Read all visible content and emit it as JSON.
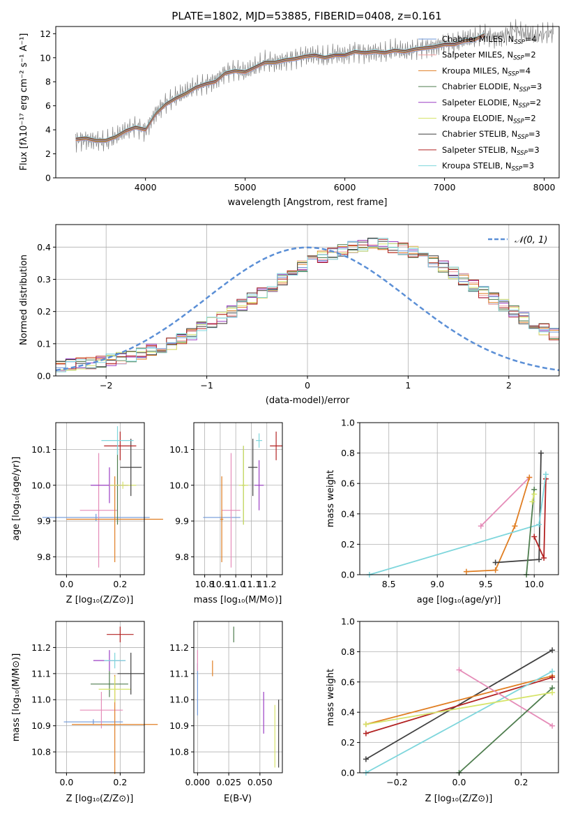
{
  "figure_title": "PLATE=1802, MJD=53885, FIBERID=0408, z=0.161",
  "colors": {
    "Chabrier MILES": "#6e97d8",
    "Salpeter MILES": "#f2a0a0",
    "Kroupa MILES": "#e07e22",
    "Chabrier ELODIE": "#4e7d4e",
    "Salpeter ELODIE": "#9b3fc4",
    "Kroupa ELODIE": "#d6e46a",
    "Chabrier STELIB": "#404040",
    "Salpeter STELIB": "#b22222",
    "Kroupa STELIB": "#7ed6dc",
    "data": "#808080",
    "gaussian": "#5b8fd6",
    "pink": "#e58cb8"
  },
  "chart_data": [
    {
      "type": "line",
      "title": "PLATE=1802, MJD=53885, FIBERID=0408, z=0.161",
      "xlabel": "wavelength [Angstrom, rest frame]",
      "ylabel": "Flux [fλ10⁻¹⁷ erg cm⁻² s⁻¹ A⁻¹]",
      "xlim": [
        3100,
        8150
      ],
      "ylim": [
        0,
        12.6
      ],
      "xticks": [
        4000,
        5000,
        6000,
        7000,
        8000
      ],
      "yticks": [
        0,
        2,
        4,
        6,
        8,
        10,
        12
      ],
      "legend_position": "upper-right",
      "x": [
        3300,
        3400,
        3500,
        3600,
        3700,
        3800,
        3900,
        4000,
        4100,
        4200,
        4300,
        4400,
        4500,
        4600,
        4700,
        4800,
        4900,
        5000,
        5100,
        5200,
        5300,
        5400,
        5500,
        5600,
        5700,
        5800,
        5900,
        6000,
        6100,
        6200,
        6300,
        6400,
        6500,
        6600,
        6700,
        6800,
        6900,
        7000,
        7100,
        7200,
        7300,
        7400,
        7500,
        7600,
        7700,
        7800,
        7900,
        8000,
        8100
      ],
      "data_flux": [
        3.1,
        3.2,
        3.1,
        3.0,
        3.4,
        3.9,
        4.3,
        3.9,
        5.4,
        6.2,
        6.7,
        7.1,
        7.6,
        7.8,
        8.1,
        8.8,
        9.0,
        8.8,
        9.2,
        9.7,
        9.6,
        9.8,
        10.0,
        10.2,
        10.2,
        10.0,
        10.3,
        10.2,
        10.6,
        10.4,
        10.5,
        10.4,
        10.7,
        10.5,
        10.7,
        10.9,
        10.9,
        11.2,
        11.1,
        11.5,
        11.6,
        12.0,
        11.6,
        11.8,
        12.4,
        12.0,
        11.8,
        12.0,
        12.1
      ],
      "model_flux": [
        3.2,
        3.3,
        3.1,
        3.1,
        3.4,
        3.9,
        4.2,
        4.0,
        5.3,
        6.1,
        6.6,
        7.0,
        7.5,
        7.8,
        8.0,
        8.7,
        8.9,
        8.8,
        9.2,
        9.6,
        9.6,
        9.8,
        9.9,
        10.1,
        10.2,
        10.0,
        10.2,
        10.2,
        10.5,
        10.4,
        10.5,
        10.4,
        10.6,
        10.5,
        10.7,
        10.8,
        10.9,
        11.1,
        11.1,
        11.4,
        11.5,
        11.9,
        11.6,
        11.8,
        12.3,
        12.0,
        11.8,
        12.0,
        12.0
      ],
      "series": [
        {
          "name": "Chabrier MILES, N_SSP=4",
          "label_main": "Chabrier MILES, N",
          "label_sub": "SSP",
          "label_tail": "=4"
        },
        {
          "name": "Salpeter MILES, N_SSP=2",
          "label_main": "Salpeter MILES, N",
          "label_sub": "SSP",
          "label_tail": "=2"
        },
        {
          "name": "Kroupa MILES, N_SSP=4",
          "label_main": "Kroupa MILES, N",
          "label_sub": "SSP",
          "label_tail": "=4"
        },
        {
          "name": "Chabrier ELODIE, N_SSP=3",
          "label_main": "Chabrier ELODIE, N",
          "label_sub": "SSP",
          "label_tail": "=3"
        },
        {
          "name": "Salpeter ELODIE, N_SSP=2",
          "label_main": "Salpeter ELODIE, N",
          "label_sub": "SSP",
          "label_tail": "=2"
        },
        {
          "name": "Kroupa ELODIE, N_SSP=2",
          "label_main": "Kroupa ELODIE, N",
          "label_sub": "SSP",
          "label_tail": "=2"
        },
        {
          "name": "Chabrier STELIB, N_SSP=3",
          "label_main": "Chabrier STELIB, N",
          "label_sub": "SSP",
          "label_tail": "=3"
        },
        {
          "name": "Salpeter STELIB, N_SSP=3",
          "label_main": "Salpeter STELIB, N",
          "label_sub": "SSP",
          "label_tail": "=3"
        },
        {
          "name": "Kroupa STELIB, N_SSP=3",
          "label_main": "Kroupa STELIB, N",
          "label_sub": "SSP",
          "label_tail": "=3"
        }
      ]
    },
    {
      "type": "bar",
      "xlabel": "(data-model)/error",
      "ylabel": "Normed distribution",
      "xlim": [
        -2.5,
        2.5
      ],
      "ylim": [
        0,
        0.47
      ],
      "xticks": [
        -2,
        -1,
        0,
        1,
        2
      ],
      "yticks": [
        0.0,
        0.1,
        0.2,
        0.3,
        0.4
      ],
      "grid": true,
      "legend_position": "upper-right",
      "legend": "𝒩(0, 1)",
      "bin_width": 0.1,
      "bin_start": -2.5,
      "hist_values": [
        0.03,
        0.035,
        0.038,
        0.04,
        0.045,
        0.05,
        0.055,
        0.06,
        0.07,
        0.08,
        0.09,
        0.1,
        0.115,
        0.13,
        0.15,
        0.165,
        0.18,
        0.2,
        0.22,
        0.24,
        0.26,
        0.28,
        0.3,
        0.32,
        0.34,
        0.355,
        0.37,
        0.38,
        0.39,
        0.4,
        0.405,
        0.41,
        0.41,
        0.4,
        0.395,
        0.385,
        0.37,
        0.355,
        0.34,
        0.32,
        0.3,
        0.28,
        0.26,
        0.24,
        0.22,
        0.2,
        0.18,
        0.16,
        0.145,
        0.13
      ]
    },
    {
      "type": "scatter",
      "xlabel": "Z [log₁₀(Z/Z⊙)]",
      "ylabel": "age  [log₁₀(age/yr)]",
      "xlim": [
        -0.04,
        0.29
      ],
      "ylim": [
        9.75,
        10.175
      ],
      "xticks": [
        0.0,
        0.2
      ],
      "yticks": [
        9.8,
        9.9,
        10.0,
        10.1
      ],
      "points": [
        {
          "x": 0.11,
          "y": 9.91,
          "xerr": 0.2,
          "yerr": 0.01
        },
        {
          "x": 0.12,
          "y": 9.93,
          "xerr": 0.07,
          "yerr": 0.16
        },
        {
          "x": 0.18,
          "y": 9.905,
          "xerr": 0.18,
          "yerr": 0.12
        },
        {
          "x": 0.19,
          "y": 10.0,
          "xerr": 0.03,
          "yerr": 0.11
        },
        {
          "x": 0.16,
          "y": 10.0,
          "xerr": 0.07,
          "yerr": 0.05
        },
        {
          "x": 0.21,
          "y": 10.0,
          "xerr": 0.05,
          "yerr": 0.01
        },
        {
          "x": 0.24,
          "y": 10.05,
          "xerr": 0.04,
          "yerr": 0.08
        },
        {
          "x": 0.2,
          "y": 10.11,
          "xerr": 0.06,
          "yerr": 0.04
        },
        {
          "x": 0.19,
          "y": 10.125,
          "xerr": 0.06,
          "yerr": 0.04
        }
      ]
    },
    {
      "type": "scatter",
      "xlabel": "mass [log₁₀(M/M⊙)]",
      "ylabel": "",
      "xlim": [
        10.73,
        11.3
      ],
      "ylim": [
        9.75,
        10.175
      ],
      "xticks": [
        10.8,
        10.9,
        11.0,
        11.1,
        11.2
      ],
      "yticks": [
        9.8,
        9.9,
        10.0,
        10.1
      ],
      "points": [
        {
          "x": 10.91,
          "y": 9.91,
          "xerr": 0.12,
          "yerr": 0.01
        },
        {
          "x": 10.97,
          "y": 9.93,
          "xerr": 0.06,
          "yerr": 0.16
        },
        {
          "x": 10.91,
          "y": 9.905,
          "xerr": 0.01,
          "yerr": 0.12
        },
        {
          "x": 11.05,
          "y": 10.0,
          "xerr": 0.01,
          "yerr": 0.11
        },
        {
          "x": 11.15,
          "y": 10.0,
          "xerr": 0.03,
          "yerr": 0.07
        },
        {
          "x": 11.05,
          "y": 10.0,
          "xerr": 0.03,
          "yerr": 0.11
        },
        {
          "x": 11.11,
          "y": 10.05,
          "xerr": 0.03,
          "yerr": 0.08
        },
        {
          "x": 11.26,
          "y": 10.11,
          "xerr": 0.04,
          "yerr": 0.04
        },
        {
          "x": 11.15,
          "y": 10.125,
          "xerr": 0.02,
          "yerr": 0.02
        }
      ]
    },
    {
      "type": "line",
      "xlabel": "age  [log₁₀(age/yr)]",
      "ylabel": "mass weight",
      "xlim": [
        8.2,
        10.25
      ],
      "ylim": [
        0,
        1.0
      ],
      "xticks": [
        8.5,
        9.0,
        9.5,
        10.0
      ],
      "yticks": [
        0.0,
        0.2,
        0.4,
        0.6,
        0.8,
        1.0
      ],
      "grid": true,
      "series": [
        {
          "x": [
            9.45,
            9.95
          ],
          "y": [
            0.32,
            0.64
          ]
        },
        {
          "x": [
            9.3,
            9.6,
            9.8,
            9.95
          ],
          "y": [
            0.02,
            0.03,
            0.32,
            0.64
          ]
        },
        {
          "x": [
            9.6,
            10.05,
            10.07
          ],
          "y": [
            0.08,
            0.1,
            0.8
          ]
        },
        {
          "x": [
            10.0,
            10.1,
            10.12
          ],
          "y": [
            0.25,
            0.11,
            0.63
          ]
        },
        {
          "x": [
            8.3,
            10.05,
            10.12
          ],
          "y": [
            0.0,
            0.33,
            0.66
          ]
        },
        {
          "x": [
            9.92,
            10.0
          ],
          "y": [
            0.0,
            0.56
          ]
        },
        {
          "x": [
            9.98,
            10.0
          ],
          "y": [
            0.48,
            0.53
          ]
        }
      ]
    },
    {
      "type": "scatter",
      "xlabel": "Z [log₁₀(Z/Z⊙)]",
      "ylabel": "mass [log₁₀(M/M⊙)]",
      "xlim": [
        -0.04,
        0.29
      ],
      "ylim": [
        10.72,
        11.3
      ],
      "xticks": [
        0.0,
        0.2
      ],
      "yticks": [
        10.8,
        10.9,
        11.0,
        11.1,
        11.2
      ],
      "points": [
        {
          "x": 0.1,
          "y": 10.915,
          "xerr": 0.11,
          "yerr": 0.01
        },
        {
          "x": 0.13,
          "y": 10.96,
          "xerr": 0.08,
          "yerr": 0.07
        },
        {
          "x": 0.18,
          "y": 10.905,
          "xerr": 0.16,
          "yerr": 0.19
        },
        {
          "x": 0.16,
          "y": 11.06,
          "xerr": 0.07,
          "yerr": 0.05
        },
        {
          "x": 0.16,
          "y": 11.15,
          "xerr": 0.06,
          "yerr": 0.04
        },
        {
          "x": 0.18,
          "y": 11.04,
          "xerr": 0.06,
          "yerr": 0.05
        },
        {
          "x": 0.24,
          "y": 11.1,
          "xerr": 0.05,
          "yerr": 0.08
        },
        {
          "x": 0.2,
          "y": 11.25,
          "xerr": 0.05,
          "yerr": 0.03
        },
        {
          "x": 0.18,
          "y": 11.15,
          "xerr": 0.04,
          "yerr": 0.03
        }
      ]
    },
    {
      "type": "scatter",
      "xlabel": "E(B-V)",
      "ylabel": "",
      "xlim": [
        -0.003,
        0.068
      ],
      "ylim": [
        10.72,
        11.3
      ],
      "xticks": [
        0.0,
        0.025,
        0.05
      ],
      "yticks": [
        10.8,
        10.9,
        11.0,
        11.1,
        11.2
      ],
      "points": [
        {
          "x": 0.0,
          "y": 11.04,
          "xerr": 0.0,
          "yerr": 0.1
        },
        {
          "x": 0.0,
          "y": 11.15,
          "xerr": 0.0,
          "yerr": 0.04
        },
        {
          "x": 0.012,
          "y": 11.12,
          "xerr": 0.0,
          "yerr": 0.03
        },
        {
          "x": 0.029,
          "y": 11.25,
          "xerr": 0.0,
          "yerr": 0.03
        },
        {
          "x": 0.053,
          "y": 10.95,
          "xerr": 0.0,
          "yerr": 0.08
        },
        {
          "x": 0.062,
          "y": 10.86,
          "xerr": 0.0,
          "yerr": 0.12
        },
        {
          "x": 0.065,
          "y": 10.87,
          "xerr": 0.0,
          "yerr": 0.13
        }
      ]
    },
    {
      "type": "line",
      "xlabel": "Z [log₁₀(Z/Z⊙)]",
      "ylabel": "mass weight",
      "xlim": [
        -0.32,
        0.32
      ],
      "ylim": [
        0,
        1.0
      ],
      "xticks": [
        -0.2,
        0.0,
        0.2
      ],
      "yticks": [
        0.0,
        0.2,
        0.4,
        0.6,
        0.8,
        1.0
      ],
      "grid": true,
      "series": [
        {
          "x": [
            -0.3,
            0.3
          ],
          "y": [
            0.09,
            0.81
          ]
        },
        {
          "x": [
            -0.3,
            0.3
          ],
          "y": [
            0.32,
            0.64
          ]
        },
        {
          "x": [
            -0.3,
            0.3
          ],
          "y": [
            0.26,
            0.63
          ]
        },
        {
          "x": [
            -0.3,
            0.3
          ],
          "y": [
            0.0,
            0.67
          ]
        },
        {
          "x": [
            0.0,
            0.3
          ],
          "y": [
            0.68,
            0.31
          ]
        },
        {
          "x": [
            0.0,
            0.3
          ],
          "y": [
            0.0,
            0.56
          ]
        },
        {
          "x": [
            -0.3,
            0.3
          ],
          "y": [
            0.32,
            0.53
          ]
        }
      ]
    }
  ]
}
